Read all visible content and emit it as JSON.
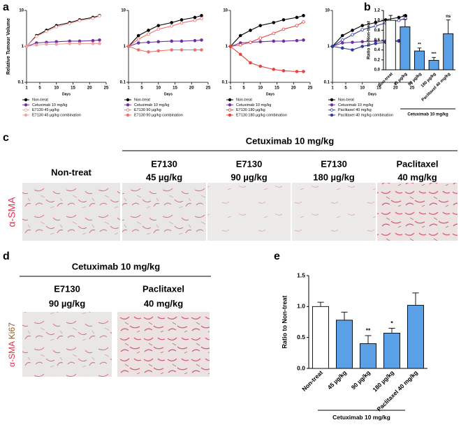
{
  "panel_labels": [
    "a",
    "b",
    "c",
    "d",
    "e"
  ],
  "chart_data": [
    {
      "type": "line",
      "ylabel": "Relative Tumour Volume",
      "xlabel": "Days",
      "log_y": true,
      "xlim": [
        1,
        25
      ],
      "xticks": [
        1,
        5,
        10,
        15,
        20,
        25
      ],
      "ylim": [
        0.1,
        10
      ],
      "yticks": [
        0.1,
        1,
        10
      ],
      "x": [
        1,
        4,
        7,
        10,
        14,
        17,
        21,
        23
      ],
      "series": [
        {
          "name": "Non-treat",
          "color": "#000000",
          "marker": "filled",
          "values": [
            1,
            2.0,
            2.8,
            3.8,
            4.6,
            5.5,
            6.4,
            7.2
          ]
        },
        {
          "name": "Cetuximab 10 mg/kg",
          "color": "#7030a0",
          "marker": "filled",
          "values": [
            1,
            1.25,
            1.3,
            1.35,
            1.4,
            1.4,
            1.45,
            1.5
          ]
        },
        {
          "name": "E7130 45 µg/kg",
          "color": "#f4a09c",
          "marker": "open",
          "values": [
            1,
            1.9,
            2.6,
            3.5,
            4.3,
            5.2,
            6.0,
            7.0
          ]
        },
        {
          "name": "E7130 45 µg/kg combination",
          "color": "#f4a09c",
          "marker": "filled",
          "values": [
            1,
            1.1,
            1.15,
            1.15,
            1.2,
            1.2,
            1.2,
            1.2
          ]
        }
      ]
    },
    {
      "type": "line",
      "xlabel": "Days",
      "log_y": true,
      "xlim": [
        1,
        25
      ],
      "xticks": [
        1,
        5,
        10,
        15,
        20,
        25
      ],
      "ylim": [
        0.1,
        10
      ],
      "yticks": [
        0.1,
        1,
        10
      ],
      "x": [
        1,
        4,
        7,
        10,
        14,
        17,
        21,
        23
      ],
      "series": [
        {
          "name": "Non-treat",
          "color": "#000000",
          "marker": "filled",
          "values": [
            1,
            2.0,
            2.8,
            3.8,
            4.6,
            5.5,
            6.4,
            7.2
          ]
        },
        {
          "name": "Cetuximab 10 mg/kg",
          "color": "#7030a0",
          "marker": "filled",
          "values": [
            1,
            1.25,
            1.3,
            1.35,
            1.4,
            1.4,
            1.45,
            1.5
          ]
        },
        {
          "name": "E7130 90 µg/kg",
          "color": "#f07070",
          "marker": "open",
          "values": [
            1,
            1.6,
            2.2,
            3.0,
            3.7,
            4.5,
            5.3,
            6.0
          ]
        },
        {
          "name": "E7130 90 µg/kg combination",
          "color": "#f07070",
          "marker": "filled",
          "values": [
            1,
            0.8,
            0.7,
            0.75,
            0.8,
            0.8,
            0.8,
            0.8
          ]
        }
      ]
    },
    {
      "type": "line",
      "xlabel": "Days",
      "log_y": true,
      "xlim": [
        1,
        25
      ],
      "xticks": [
        1,
        5,
        10,
        15,
        20,
        25
      ],
      "ylim": [
        0.1,
        10
      ],
      "yticks": [
        0.1,
        1,
        10
      ],
      "x": [
        1,
        4,
        7,
        10,
        14,
        17,
        21,
        23
      ],
      "series": [
        {
          "name": "Non-treat",
          "color": "#000000",
          "marker": "filled",
          "values": [
            1,
            2.0,
            2.8,
            3.8,
            4.6,
            5.5,
            6.4,
            7.2
          ]
        },
        {
          "name": "Cetuximab 10 mg/kg",
          "color": "#7030a0",
          "marker": "filled",
          "values": [
            1,
            1.25,
            1.3,
            1.35,
            1.4,
            1.4,
            1.45,
            1.5
          ]
        },
        {
          "name": "E7130 180 µg/kg",
          "color": "#e8403a",
          "marker": "open",
          "values": [
            1,
            1.1,
            1.3,
            1.7,
            2.3,
            3.0,
            3.8,
            4.8
          ]
        },
        {
          "name": "E7130 180 µg/kg combination",
          "color": "#e8403a",
          "marker": "filled",
          "values": [
            1,
            0.6,
            0.35,
            0.28,
            0.23,
            0.21,
            0.2,
            0.2
          ]
        }
      ]
    },
    {
      "type": "line",
      "xlabel": "Days",
      "log_y": true,
      "xlim": [
        1,
        25
      ],
      "xticks": [
        1,
        5,
        10,
        15,
        20,
        25
      ],
      "ylim": [
        0.1,
        10
      ],
      "yticks": [
        0.1,
        1,
        10
      ],
      "x": [
        1,
        4,
        7,
        10,
        14,
        17,
        21,
        23
      ],
      "series": [
        {
          "name": "Non-treat",
          "color": "#000000",
          "marker": "filled",
          "values": [
            1,
            2.0,
            2.8,
            3.8,
            4.6,
            5.5,
            6.4,
            7.2
          ]
        },
        {
          "name": "Cetuximab 10 mg/kg",
          "color": "#7030a0",
          "marker": "filled",
          "values": [
            1,
            1.25,
            1.3,
            1.35,
            1.4,
            1.4,
            1.45,
            1.5
          ]
        },
        {
          "name": "Paclitaxel 40 mg/kg",
          "color": "#2e3a9e",
          "marker": "open",
          "values": [
            1,
            1.5,
            2.1,
            2.9,
            3.7,
            4.5,
            5.3,
            6.0
          ]
        },
        {
          "name": "Paclitaxel 40 mg/kg combination",
          "color": "#2e3a9e",
          "marker": "filled",
          "values": [
            1,
            0.9,
            0.8,
            1.0,
            1.2,
            1.3,
            1.4,
            1.4
          ]
        }
      ]
    },
    {
      "type": "bar",
      "ylabel": "Ratio to Non-treat",
      "categories": [
        "Non-treat",
        "45 µg/kg",
        "90 µg/kg",
        "180 µg/kg",
        "Paclitaxel 40 mg/kg"
      ],
      "values": [
        1.0,
        0.87,
        0.38,
        0.19,
        0.73
      ],
      "errors": [
        0.1,
        0.15,
        0.06,
        0.06,
        0.28
      ],
      "colors": [
        "#ffffff",
        "#5aa0e6",
        "#5aa0e6",
        "#5aa0e6",
        "#5aa0e6"
      ],
      "annotations": [
        null,
        "ns",
        "**",
        "***",
        "ns"
      ],
      "group_label": "Cetuximab 10 mg/kg",
      "ylim": [
        0,
        1.2
      ],
      "yticks": [
        {
          "value": 0,
          "label": "0.0"
        },
        {
          "value": 0.2,
          "label": "0.2"
        },
        {
          "value": 0.4,
          "label": "0.4"
        },
        {
          "value": 0.6,
          "label": "0.6"
        },
        {
          "value": 0.8,
          "label": "0.8"
        },
        {
          "value": 1.0,
          "label": "1.0"
        },
        {
          "value": 1.2,
          "label": "1.2"
        }
      ]
    },
    {
      "type": "bar",
      "ylabel": "Ratio to Non-treat",
      "categories": [
        "Non-treat",
        "45 µg/kg",
        "90 µg/kg",
        "180 µg/kg",
        "Paclitaxel 40 mg/kg"
      ],
      "values": [
        1.0,
        0.78,
        0.4,
        0.57,
        1.02
      ],
      "errors": [
        0.07,
        0.13,
        0.13,
        0.08,
        0.2
      ],
      "colors": [
        "#ffffff",
        "#5aa0e6",
        "#5aa0e6",
        "#5aa0e6",
        "#5aa0e6"
      ],
      "annotations": [
        null,
        null,
        "**",
        "*",
        null
      ],
      "group_label": "Cetuximab 10 mg/kg",
      "ylim": [
        0,
        1.5
      ],
      "yticks": [
        {
          "value": 0,
          "label": "0.0"
        },
        {
          "value": 0.5,
          "label": "0.5"
        },
        {
          "value": 1.0,
          "label": "1.0"
        },
        {
          "value": 1.5,
          "label": "1.5"
        }
      ]
    }
  ],
  "panel_c": {
    "group_label": "Cetuximab 10 mg/kg",
    "columns": [
      [
        "Non-treat"
      ],
      [
        "E7130",
        "45 µg/kg"
      ],
      [
        "E7130",
        "90 µg/kg"
      ],
      [
        "E7130",
        "180 µg/kg"
      ],
      [
        "Paclitaxel",
        "40 mg/kg"
      ]
    ],
    "stain": "α-SMA"
  },
  "panel_d": {
    "group_label": "Cetuximab 10 mg/kg",
    "columns": [
      [
        "E7130",
        "90 µg/kg"
      ],
      [
        "Paclitaxel",
        "40 mg/kg"
      ]
    ],
    "stain": [
      "α-SMA",
      "Ki67"
    ]
  }
}
